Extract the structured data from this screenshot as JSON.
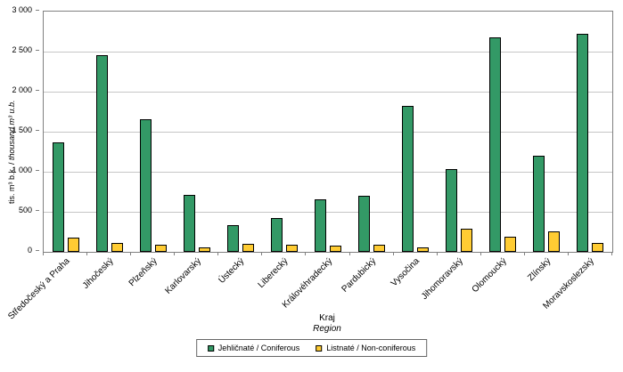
{
  "chart_data": {
    "type": "bar",
    "categories": [
      "Středočeský a Praha",
      "Jihočeský",
      "Plzeňský",
      "Karlovarský",
      "Ústecký",
      "Liberecký",
      "Královéhradecký",
      "Pardubický",
      "Vysočina",
      "Jihomoravský",
      "Olomoucký",
      "Zlínský",
      "Moravskoslezský"
    ],
    "series": [
      {
        "name": "Jehličnaté / Coniferous",
        "color": "#339966",
        "values": [
          1370,
          2460,
          1650,
          710,
          330,
          420,
          650,
          700,
          1820,
          1030,
          2680,
          1200,
          2720
        ]
      },
      {
        "name": "Listnaté / Non-coniferous",
        "color": "#ffcc33",
        "values": [
          180,
          110,
          85,
          50,
          100,
          90,
          80,
          85,
          50,
          290,
          190,
          260,
          110
        ]
      }
    ],
    "ylabel_cs": "tis. m³ b.k. / ",
    "ylabel_en": "thousand m³ u.b.",
    "xlabel_cs": "Kraj",
    "xlabel_en": "Region",
    "ylim": [
      0,
      3000
    ],
    "ytick_step": 500,
    "ytick_labels": [
      "0",
      "500",
      "1 000",
      "1 500",
      "2 000",
      "2 500",
      "3 000"
    ],
    "grid": true,
    "legend_position": "bottom"
  }
}
